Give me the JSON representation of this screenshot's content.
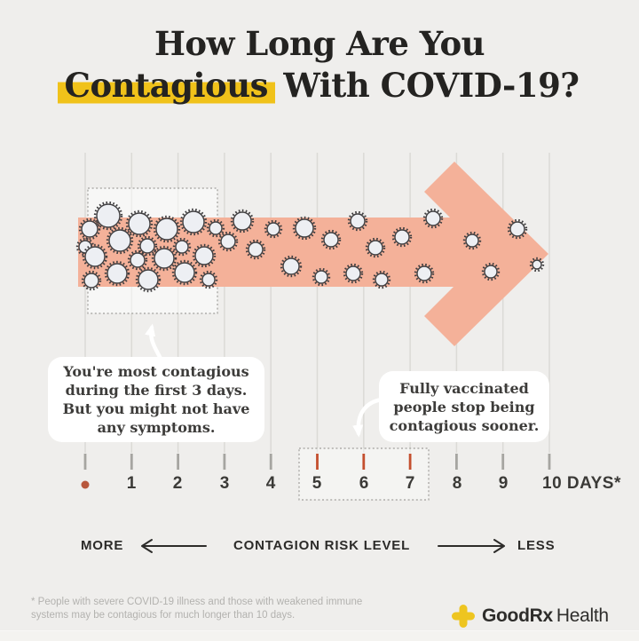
{
  "title": {
    "line1": "How Long Are You",
    "highlighted_word": "Contagious",
    "line2_rest": " With COVID-19?"
  },
  "timeline": {
    "day_labels": [
      "1",
      "2",
      "3",
      "4",
      "5",
      "6",
      "7",
      "8",
      "9",
      "10 DAYS*"
    ],
    "red_tick_days": [
      5,
      6,
      7
    ],
    "contagious_box_days": [
      0,
      3
    ],
    "vaccinated_box_days": [
      5,
      7
    ]
  },
  "callouts": {
    "most_contagious": {
      "lines": [
        "You're most contagious",
        "during the first 3 days.",
        "But you might not have",
        "any symptoms."
      ]
    },
    "vaccinated": {
      "lines": [
        "Fully vaccinated",
        "people stop being",
        "contagious sooner."
      ]
    }
  },
  "risk_scale": {
    "more_label": "MORE",
    "title": "CONTAGION RISK LEVEL",
    "less_label": "LESS"
  },
  "footnote": {
    "lines": [
      "* People with severe COVID-19 illness and those with weakened immune",
      "systems may be contagious for much longer than 10 days."
    ]
  },
  "brand": {
    "bold": "GoodRx",
    "regular": "Health"
  },
  "colors": {
    "background": "#efeeec",
    "arrow": "#f4b199",
    "highlight_yellow": "#f0c21a",
    "tick_red": "#c44f2e",
    "tick_gray": "#a6a5a1",
    "gridline": "#dbdad6",
    "day_zero_dot": "#b8573c",
    "brand_yellow": "#eec520",
    "virus_fill": "#edeff3",
    "virus_stroke": "#3f3e40"
  }
}
